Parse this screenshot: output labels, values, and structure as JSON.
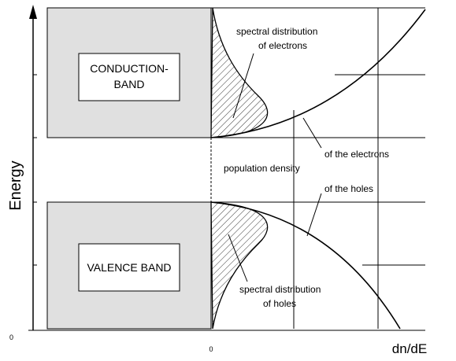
{
  "axes": {
    "y_label": "Energy",
    "y_origin": "0",
    "x_origin": "0",
    "x_label": "dn/dE"
  },
  "bands": {
    "conduction": [
      "CONDUCTION-",
      "BAND"
    ],
    "valence": "VALENCE BAND"
  },
  "annotations": {
    "spectral_electrons": [
      "spectral distribution",
      "of electrons"
    ],
    "density_electrons": "of the electrons",
    "population_density": "population density",
    "density_holes": "of the holes",
    "spectral_holes": [
      "spectral distribution",
      "of holes"
    ]
  }
}
